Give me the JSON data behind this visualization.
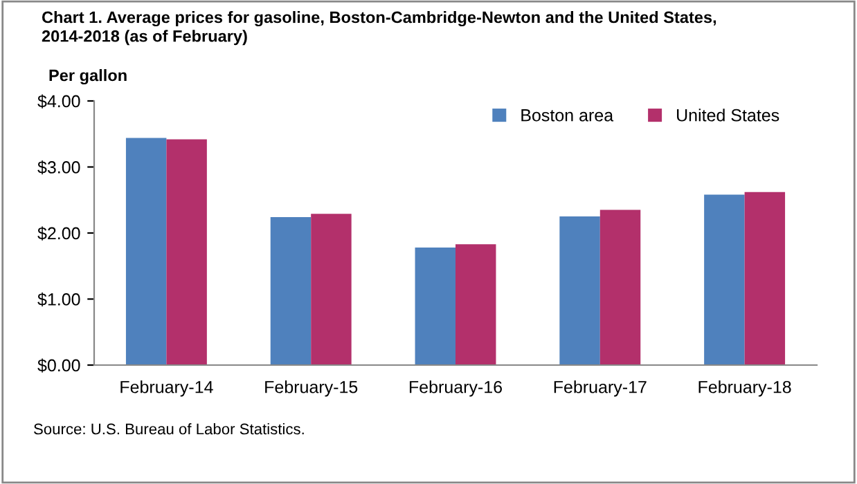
{
  "chart_data": {
    "type": "bar",
    "title": "Chart 1. Average prices for gasoline, Boston-Cambridge-Newton and the United States,\n2014-2018 (as of February)",
    "ylabel": "Per gallon",
    "categories": [
      "February-14",
      "February-15",
      "February-16",
      "February-17",
      "February-18"
    ],
    "series": [
      {
        "name": "Boston area",
        "color": "#4f81bd",
        "values": [
          3.44,
          2.24,
          1.78,
          2.25,
          2.58
        ]
      },
      {
        "name": "United States",
        "color": "#b3306b",
        "values": [
          3.42,
          2.29,
          1.83,
          2.35,
          2.62
        ]
      }
    ],
    "ylim": [
      0,
      4
    ],
    "yticks": [
      {
        "value": 0,
        "label": "$0.00"
      },
      {
        "value": 1,
        "label": "$1.00"
      },
      {
        "value": 2,
        "label": "$2.00"
      },
      {
        "value": 3,
        "label": "$3.00"
      },
      {
        "value": 4,
        "label": "$4.00"
      }
    ],
    "grid": false,
    "legend": "top right",
    "annotations": [
      "Source: U.S. Bureau of Labor Statistics."
    ]
  }
}
